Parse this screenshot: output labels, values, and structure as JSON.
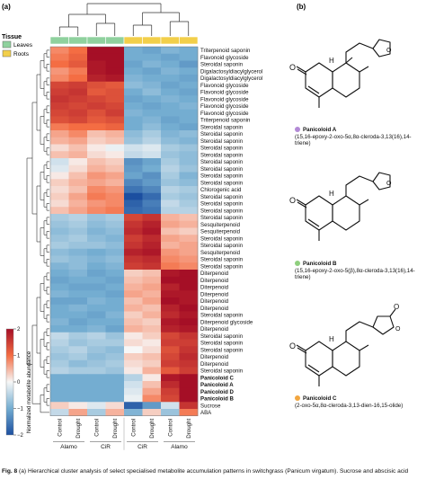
{
  "panel_a_label": "(a)",
  "panel_b_label": "(b)",
  "legend": {
    "title": "Tissue",
    "items": [
      {
        "label": "Leaves",
        "color": "#8fd19e"
      },
      {
        "label": "Roots",
        "color": "#f2cf4a"
      }
    ]
  },
  "colorbar": {
    "title": "Normalized metabolite abundance",
    "ticks": [
      "2",
      "1",
      "0",
      "−1",
      "−2"
    ]
  },
  "columns": [
    {
      "treatment": "Control",
      "tissue": "Leaves"
    },
    {
      "treatment": "Drought",
      "tissue": "Leaves"
    },
    {
      "treatment": "Control",
      "tissue": "Leaves"
    },
    {
      "treatment": "Drought",
      "tissue": "Leaves"
    },
    {
      "treatment": "Control",
      "tissue": "Roots"
    },
    {
      "treatment": "Drought",
      "tissue": "Roots"
    },
    {
      "treatment": "Control",
      "tissue": "Roots"
    },
    {
      "treatment": "Drought",
      "tissue": "Roots"
    }
  ],
  "genotype_groups": [
    {
      "label": "Alamo",
      "row": 1
    },
    {
      "label": "CiR",
      "row": 1
    },
    {
      "label": "CiR",
      "row": 2
    },
    {
      "label": "Alamo",
      "row": 2
    }
  ],
  "rows": [
    {
      "label": "Triterpenoid saponin",
      "bold": false,
      "values": [
        0.8,
        1.0,
        2.0,
        2.2,
        -1.0,
        -1.1,
        -0.9,
        -1.0
      ]
    },
    {
      "label": "Flavonoid glycoside",
      "bold": false,
      "values": [
        0.9,
        1.1,
        2.1,
        2.0,
        -1.0,
        -1.0,
        -1.1,
        -1.0
      ]
    },
    {
      "label": "Steroidal saponin",
      "bold": false,
      "values": [
        1.0,
        1.2,
        1.9,
        2.1,
        -1.1,
        -0.9,
        -1.0,
        -1.2
      ]
    },
    {
      "label": "Digalactosyldiacylglycerol",
      "bold": false,
      "values": [
        0.7,
        0.9,
        1.9,
        2.0,
        -1.0,
        -1.1,
        -0.9,
        -1.0
      ]
    },
    {
      "label": "Digalactosyldiacylglycerol",
      "bold": false,
      "values": [
        0.8,
        1.0,
        1.8,
        1.9,
        -0.9,
        -1.0,
        -1.0,
        -1.1
      ]
    },
    {
      "label": "Flavonoid glycoside",
      "bold": false,
      "values": [
        1.4,
        1.5,
        1.3,
        1.2,
        -0.8,
        -0.9,
        -1.1,
        -1.0
      ]
    },
    {
      "label": "Flavonoid glycoside",
      "bold": false,
      "values": [
        1.5,
        1.6,
        1.2,
        1.3,
        -1.0,
        -0.8,
        -1.0,
        -1.1
      ]
    },
    {
      "label": "Flavonoid glycoside",
      "bold": false,
      "values": [
        1.6,
        1.5,
        1.4,
        1.3,
        -1.1,
        -1.0,
        -0.9,
        -1.0
      ]
    },
    {
      "label": "Flavonoid glycoside",
      "bold": false,
      "values": [
        1.5,
        1.4,
        1.5,
        1.4,
        -1.0,
        -1.1,
        -1.0,
        -0.9
      ]
    },
    {
      "label": "Flavonoid glycoside",
      "bold": false,
      "values": [
        1.4,
        1.5,
        1.3,
        1.5,
        -0.9,
        -1.0,
        -1.0,
        -1.0
      ]
    },
    {
      "label": "Triterpenoid saponin",
      "bold": false,
      "values": [
        1.3,
        1.4,
        1.2,
        1.3,
        -1.0,
        -0.9,
        -1.1,
        -1.0
      ]
    },
    {
      "label": "Steroidal saponin",
      "bold": false,
      "values": [
        0.9,
        1.0,
        1.0,
        1.1,
        -1.0,
        -0.8,
        -1.0,
        -1.1
      ]
    },
    {
      "label": "Steroidal saponin",
      "bold": false,
      "values": [
        0.6,
        0.8,
        0.4,
        0.5,
        -0.8,
        -0.6,
        -0.9,
        -0.8
      ]
    },
    {
      "label": "Steroidal saponin",
      "bold": false,
      "values": [
        0.5,
        0.6,
        0.3,
        0.4,
        -0.7,
        -0.5,
        -0.8,
        -0.9
      ]
    },
    {
      "label": "Steroidal saponin",
      "bold": false,
      "values": [
        0.2,
        0.4,
        0.1,
        -0.1,
        -0.3,
        -0.2,
        -0.6,
        -0.7
      ]
    },
    {
      "label": "Steroidal saponin",
      "bold": false,
      "values": [
        0.4,
        0.5,
        0.2,
        0.1,
        -0.4,
        -0.3,
        -0.7,
        -0.8
      ]
    },
    {
      "label": "Steroidal saponin",
      "bold": false,
      "values": [
        -0.3,
        0.1,
        0.4,
        0.3,
        -1.3,
        -1.1,
        -0.6,
        -0.8
      ]
    },
    {
      "label": "Steroidal saponin",
      "bold": false,
      "values": [
        -0.2,
        0.2,
        0.5,
        0.4,
        -1.2,
        -1.0,
        -0.5,
        -0.7
      ]
    },
    {
      "label": "Steroidal saponin",
      "bold": false,
      "values": [
        0.1,
        0.4,
        0.7,
        0.6,
        -1.1,
        -1.3,
        -0.6,
        -0.9
      ]
    },
    {
      "label": "Steroidal saponin",
      "bold": false,
      "values": [
        0.3,
        0.5,
        0.6,
        0.5,
        -1.4,
        -1.2,
        -0.7,
        -0.8
      ]
    },
    {
      "label": "Chlorogenic acid",
      "bold": false,
      "values": [
        0.2,
        0.4,
        0.8,
        0.7,
        -1.6,
        -1.4,
        -0.5,
        -0.6
      ]
    },
    {
      "label": "Steroidal saponin",
      "bold": false,
      "values": [
        0.3,
        0.6,
        0.9,
        0.8,
        -2.0,
        -1.7,
        -0.6,
        -0.7
      ]
    },
    {
      "label": "Steroidal saponin",
      "bold": false,
      "values": [
        0.2,
        0.5,
        0.7,
        0.8,
        -1.8,
        -1.5,
        -0.4,
        -0.6
      ]
    },
    {
      "label": "Steroidal saponin",
      "bold": false,
      "values": [
        0.4,
        0.6,
        0.8,
        0.9,
        -1.7,
        -1.6,
        -0.5,
        -0.5
      ]
    },
    {
      "label": "Steroidal saponin",
      "bold": false,
      "values": [
        -0.6,
        -0.5,
        -0.7,
        -0.6,
        1.4,
        1.6,
        0.5,
        0.4
      ]
    },
    {
      "label": "Sesquiterpenoid",
      "bold": false,
      "values": [
        -0.7,
        -0.6,
        -0.8,
        -0.7,
        1.6,
        1.8,
        0.6,
        0.5
      ]
    },
    {
      "label": "Sesquiterpenoid",
      "bold": false,
      "values": [
        -0.8,
        -0.7,
        -0.9,
        -0.8,
        1.7,
        1.9,
        0.4,
        0.3
      ]
    },
    {
      "label": "Steroidal saponin",
      "bold": false,
      "values": [
        -0.7,
        -0.6,
        -0.8,
        -0.9,
        1.5,
        1.7,
        0.6,
        0.5
      ]
    },
    {
      "label": "Steroidal saponin",
      "bold": false,
      "values": [
        -0.6,
        -0.7,
        -0.7,
        -0.8,
        1.6,
        1.8,
        0.5,
        0.6
      ]
    },
    {
      "label": "Sesquiterpenoid",
      "bold": false,
      "values": [
        -0.8,
        -0.9,
        -1.0,
        -0.9,
        1.8,
        1.9,
        0.7,
        0.6
      ]
    },
    {
      "label": "Steroidal saponin",
      "bold": false,
      "values": [
        -0.7,
        -0.8,
        -0.9,
        -0.8,
        1.6,
        1.7,
        0.8,
        0.7
      ]
    },
    {
      "label": "Steroidal saponin",
      "bold": false,
      "values": [
        -0.9,
        -0.8,
        -1.0,
        -0.9,
        1.5,
        1.6,
        0.9,
        0.8
      ]
    },
    {
      "label": "Diterpenoid",
      "bold": false,
      "values": [
        -1.0,
        -0.9,
        -1.1,
        -1.0,
        0.3,
        0.4,
        1.9,
        2.0
      ]
    },
    {
      "label": "Diterpenoid",
      "bold": false,
      "values": [
        -1.1,
        -1.0,
        -1.0,
        -1.1,
        0.4,
        0.5,
        2.0,
        2.1
      ]
    },
    {
      "label": "Diterpenoid",
      "bold": false,
      "values": [
        -1.0,
        -1.1,
        -1.1,
        -1.0,
        0.5,
        0.6,
        1.8,
        2.0
      ]
    },
    {
      "label": "Diterpenoid",
      "bold": false,
      "values": [
        -0.9,
        -1.0,
        -1.0,
        -1.1,
        0.6,
        0.5,
        1.9,
        1.9
      ]
    },
    {
      "label": "Diterpenoid",
      "bold": false,
      "values": [
        -1.1,
        -1.1,
        -0.9,
        -1.0,
        0.4,
        0.6,
        2.0,
        1.9
      ]
    },
    {
      "label": "Diterpenoid",
      "bold": false,
      "values": [
        -1.0,
        -0.9,
        -1.0,
        -1.0,
        0.5,
        0.4,
        1.8,
        2.1
      ]
    },
    {
      "label": "Steroidal saponin",
      "bold": false,
      "values": [
        -1.0,
        -1.0,
        -1.1,
        -0.9,
        0.3,
        0.5,
        1.7,
        1.9
      ]
    },
    {
      "label": "Diterpenoid glycoside",
      "bold": false,
      "values": [
        -0.9,
        -1.1,
        -1.0,
        -1.0,
        0.4,
        0.3,
        1.9,
        2.0
      ]
    },
    {
      "label": "Diterpenoid",
      "bold": false,
      "values": [
        -1.0,
        -1.0,
        -0.9,
        -1.1,
        0.5,
        0.4,
        1.8,
        1.9
      ]
    },
    {
      "label": "Steroidal saponin",
      "bold": false,
      "values": [
        -0.4,
        -0.6,
        -0.5,
        -0.7,
        0.1,
        0.3,
        1.4,
        1.6
      ]
    },
    {
      "label": "Steroidal saponin",
      "bold": false,
      "values": [
        -0.5,
        -0.7,
        -0.6,
        -0.6,
        0.2,
        0.1,
        1.5,
        1.5
      ]
    },
    {
      "label": "Steroidal saponin",
      "bold": false,
      "values": [
        -0.6,
        -0.5,
        -0.7,
        -0.8,
        0.0,
        0.2,
        1.3,
        1.6
      ]
    },
    {
      "label": "Diterpenoid",
      "bold": false,
      "values": [
        -0.7,
        -0.6,
        -0.8,
        -0.7,
        0.3,
        0.4,
        1.4,
        1.7
      ]
    },
    {
      "label": "Diterpenoid",
      "bold": false,
      "values": [
        -0.6,
        -0.8,
        -0.7,
        -0.6,
        0.2,
        0.3,
        1.5,
        1.6
      ]
    },
    {
      "label": "Steroidal saponin",
      "bold": false,
      "values": [
        -0.5,
        -0.6,
        -0.6,
        -0.7,
        0.1,
        0.5,
        1.2,
        1.5
      ]
    },
    {
      "label": "Panicoloid C",
      "bold": true,
      "values": [
        -1.0,
        -1.0,
        -1.0,
        -1.0,
        -0.5,
        0.1,
        1.9,
        2.1
      ]
    },
    {
      "label": "Panicoloid A",
      "bold": true,
      "values": [
        -1.0,
        -1.0,
        -1.0,
        -1.0,
        -0.3,
        0.4,
        1.7,
        2.2
      ]
    },
    {
      "label": "Panicoloid D",
      "bold": true,
      "values": [
        -1.0,
        -1.0,
        -1.0,
        -1.0,
        -0.2,
        0.6,
        1.5,
        2.3
      ]
    },
    {
      "label": "Panicoloid B",
      "bold": true,
      "values": [
        -1.0,
        -1.0,
        -1.0,
        -1.0,
        -0.1,
        0.8,
        1.4,
        2.4
      ]
    },
    {
      "label": "Sucrose",
      "bold": false,
      "values": [
        0.3,
        0.1,
        -0.2,
        0.2,
        -1.8,
        -1.2,
        -0.3,
        1.6
      ]
    },
    {
      "label": "ABA",
      "bold": false,
      "values": [
        -0.4,
        0.6,
        -0.6,
        0.5,
        -0.9,
        0.3,
        -0.7,
        0.9
      ]
    }
  ],
  "compounds": [
    {
      "name": "Panicoloid A",
      "formula": "(15,16-epoxy-2-oxo-5α,8α-cleroda-3,13(16),14-triene)",
      "color": "#b38ad6"
    },
    {
      "name": "Panicoloid B",
      "formula": "(15,16-epoxy-2-oxo-5(β),8α-cleroda-3,13(16),14-triene)",
      "color": "#8fcf7e"
    },
    {
      "name": "Panicoloid C",
      "formula": "(2-oxo-5α,8α-cleroda-3,13-dien-16,15-olide)",
      "color": "#f2a640"
    }
  ],
  "caption": {
    "prefix": "Fig. 8",
    "text": " (a) Hierarchical cluster analysis of select specialised metabolite accumulation patterns in switchgrass (Panicum virgatum). Sucrose and abscisic acid"
  },
  "structure_labels": {
    "oxo": "O",
    "h": "H"
  }
}
